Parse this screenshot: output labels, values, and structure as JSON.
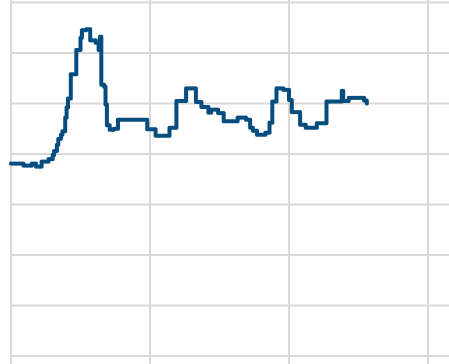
{
  "chart_data": {
    "type": "line",
    "title": "",
    "xlabel": "",
    "ylabel": "",
    "grid": true,
    "legend": "none",
    "color": "#064D7F",
    "xlim": [
      0,
      315
    ],
    "ylim": [
      0,
      7
    ],
    "x_gridlines": [
      100,
      200,
      300
    ],
    "y_gridlines": [
      0,
      1,
      2,
      3,
      4,
      5,
      6,
      7
    ],
    "series": [
      {
        "points": [
          [
            0,
            3.81
          ],
          [
            9,
            3.81
          ],
          [
            9,
            3.77
          ],
          [
            15,
            3.77
          ],
          [
            15,
            3.81
          ],
          [
            18,
            3.81
          ],
          [
            18,
            3.75
          ],
          [
            22,
            3.75
          ],
          [
            22,
            3.85
          ],
          [
            27,
            3.85
          ],
          [
            27,
            3.9
          ],
          [
            30,
            3.9
          ],
          [
            30,
            3.98
          ],
          [
            31,
            3.98
          ],
          [
            31,
            4.06
          ],
          [
            33,
            4.06
          ],
          [
            33,
            4.18
          ],
          [
            34,
            4.18
          ],
          [
            34,
            4.3
          ],
          [
            36,
            4.3
          ],
          [
            36,
            4.38
          ],
          [
            37,
            4.38
          ],
          [
            37,
            4.45
          ],
          [
            39,
            4.45
          ],
          [
            39,
            4.72
          ],
          [
            40,
            4.72
          ],
          [
            40,
            4.92
          ],
          [
            41,
            4.92
          ],
          [
            41,
            5.1
          ],
          [
            43,
            5.1
          ],
          [
            43,
            5.58
          ],
          [
            47,
            5.58
          ],
          [
            47,
            6.06
          ],
          [
            50,
            6.06
          ],
          [
            50,
            6.3
          ],
          [
            51,
            6.3
          ],
          [
            51,
            6.45
          ],
          [
            54,
            6.45
          ],
          [
            54,
            6.47
          ],
          [
            57,
            6.47
          ],
          [
            57,
            6.25
          ],
          [
            61,
            6.25
          ],
          [
            61,
            6.2
          ],
          [
            63,
            6.2
          ],
          [
            63,
            6.06
          ],
          [
            64,
            6.06
          ],
          [
            64,
            6.32
          ],
          [
            65,
            6.32
          ],
          [
            65,
            5.37
          ],
          [
            67,
            5.37
          ],
          [
            67,
            5.33
          ],
          [
            68,
            5.33
          ],
          [
            68,
            4.98
          ],
          [
            69,
            4.98
          ],
          [
            69,
            4.57
          ],
          [
            71,
            4.57
          ],
          [
            71,
            4.48
          ],
          [
            74,
            4.48
          ],
          [
            74,
            4.5
          ],
          [
            77,
            4.5
          ],
          [
            77,
            4.68
          ],
          [
            98,
            4.68
          ],
          [
            98,
            4.49
          ],
          [
            104,
            4.49
          ],
          [
            104,
            4.36
          ],
          [
            114,
            4.36
          ],
          [
            114,
            4.52
          ],
          [
            119,
            4.52
          ],
          [
            119,
            5.05
          ],
          [
            126,
            5.05
          ],
          [
            126,
            5.3
          ],
          [
            133,
            5.3
          ],
          [
            133,
            5.03
          ],
          [
            137,
            5.03
          ],
          [
            137,
            4.93
          ],
          [
            142,
            4.93
          ],
          [
            142,
            4.82
          ],
          [
            144,
            4.82
          ],
          [
            144,
            4.88
          ],
          [
            149,
            4.88
          ],
          [
            149,
            4.81
          ],
          [
            153,
            4.81
          ],
          [
            153,
            4.65
          ],
          [
            163,
            4.65
          ],
          [
            163,
            4.72
          ],
          [
            169,
            4.72
          ],
          [
            169,
            4.68
          ],
          [
            172,
            4.68
          ],
          [
            172,
            4.52
          ],
          [
            174,
            4.52
          ],
          [
            174,
            4.46
          ],
          [
            177,
            4.46
          ],
          [
            177,
            4.38
          ],
          [
            183,
            4.38
          ],
          [
            183,
            4.42
          ],
          [
            186,
            4.42
          ],
          [
            186,
            4.62
          ],
          [
            188,
            4.62
          ],
          [
            188,
            5.04
          ],
          [
            191,
            5.04
          ],
          [
            191,
            5.3
          ],
          [
            196,
            5.3
          ],
          [
            196,
            5.27
          ],
          [
            200,
            5.27
          ],
          [
            200,
            5.07
          ],
          [
            202,
            5.07
          ],
          [
            202,
            4.83
          ],
          [
            208,
            4.83
          ],
          [
            208,
            4.58
          ],
          [
            212,
            4.58
          ],
          [
            212,
            4.52
          ],
          [
            220,
            4.52
          ],
          [
            220,
            4.61
          ],
          [
            227,
            4.61
          ],
          [
            227,
            5.04
          ],
          [
            238,
            5.04
          ],
          [
            238,
            5.25
          ],
          [
            239,
            5.25
          ],
          [
            239,
            5.05
          ],
          [
            243,
            5.05
          ],
          [
            243,
            5.11
          ],
          [
            254,
            5.11
          ],
          [
            254,
            5.06
          ],
          [
            256,
            5.06
          ],
          [
            256,
            5.0
          ]
        ]
      }
    ]
  }
}
